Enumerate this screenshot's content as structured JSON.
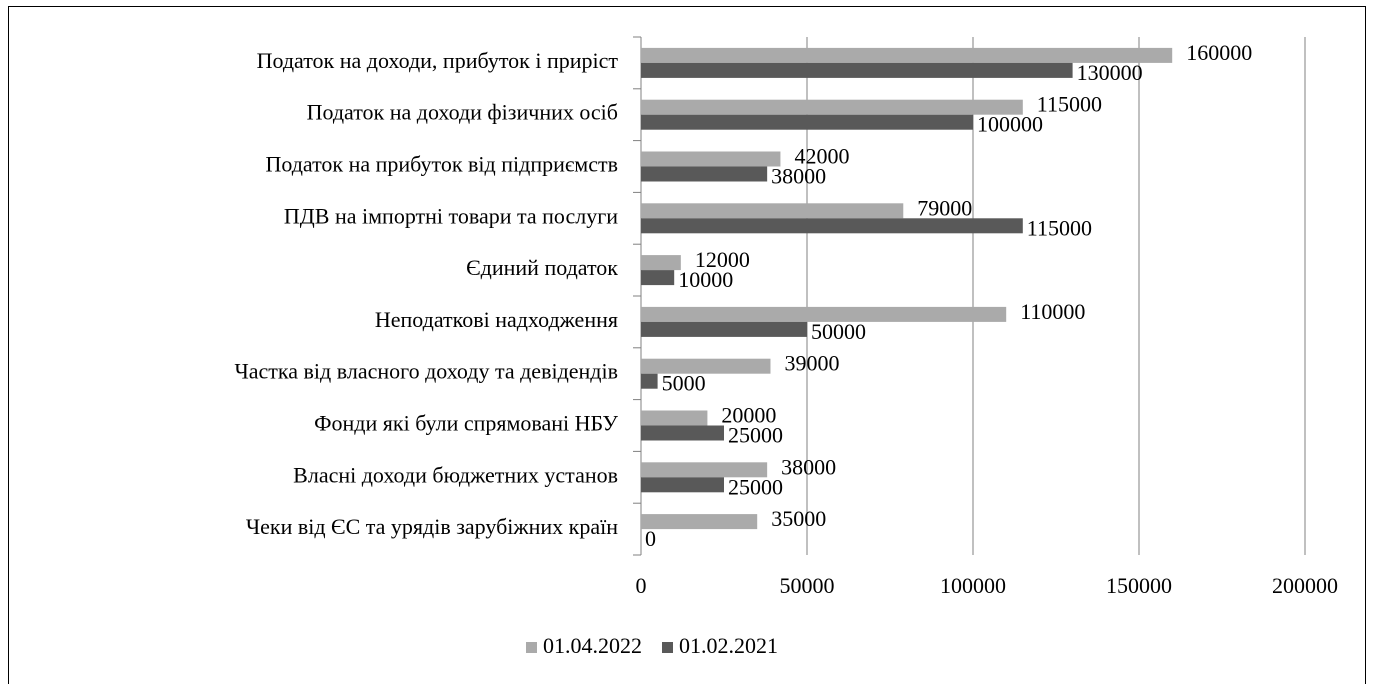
{
  "chart_data": {
    "type": "bar",
    "orientation": "horizontal",
    "categories": [
      "Податок на доходи, прибуток і приріст",
      "Податок на доходи фізичних осіб",
      "Податок на прибуток від підприємств",
      "ПДВ на імпортні товари та послуги",
      "Єдиний податок",
      "Неподаткові надходження",
      "Частка від власного доходу та девідендів",
      "Фонди які були спрямовані НБУ",
      "Власні доходи бюджетних установ",
      "Чеки від ЄС та урядів зарубіжних країн"
    ],
    "series": [
      {
        "name": "01.04.2022",
        "color": "#aaaaaa",
        "values": [
          160000,
          115000,
          42000,
          79000,
          12000,
          110000,
          39000,
          20000,
          38000,
          35000
        ]
      },
      {
        "name": "01.02.2021",
        "color": "#595959",
        "values": [
          130000,
          100000,
          38000,
          115000,
          10000,
          50000,
          5000,
          25000,
          25000,
          0
        ]
      }
    ],
    "xlim": [
      0,
      200000
    ],
    "xticks": [
      0,
      50000,
      100000,
      150000,
      200000
    ],
    "grid": true,
    "legend": "bottom"
  }
}
